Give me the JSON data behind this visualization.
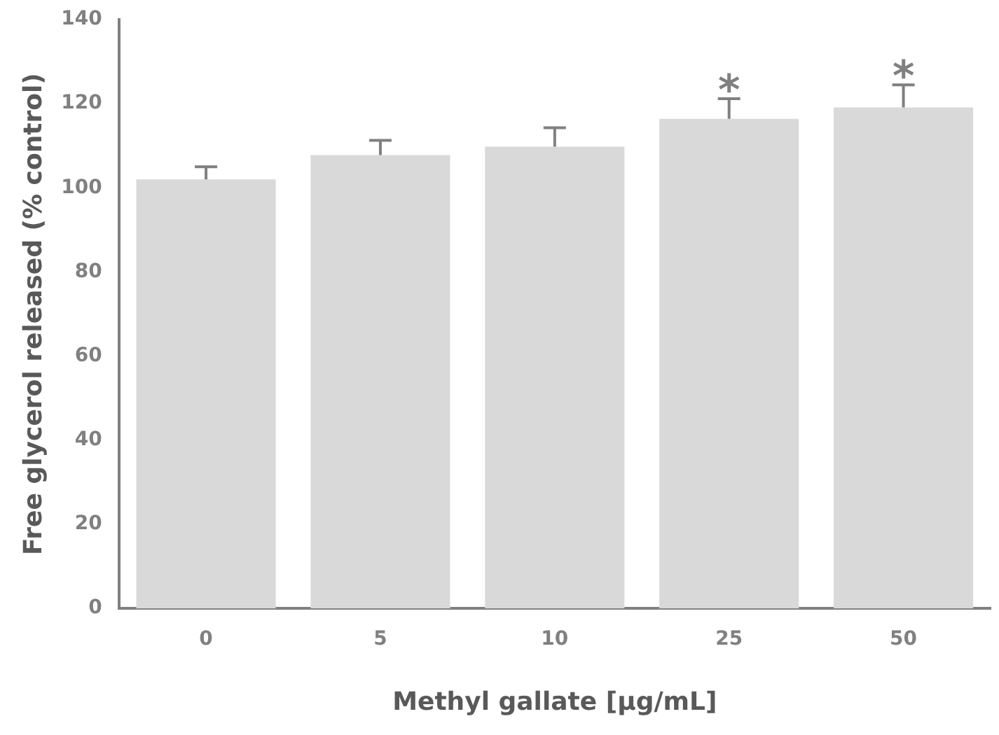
{
  "chart_data": {
    "type": "bar",
    "xlabel": "Methyl gallate [µg/mL]",
    "ylabel": "Free glycerol released (% control)",
    "categories": [
      "0",
      "5",
      "10",
      "25",
      "50"
    ],
    "values": [
      102,
      107.8,
      109.8,
      116.4,
      119.1
    ],
    "color": "#d9d9d9",
    "errors": [
      [
        102,
        105
      ],
      [
        107.8,
        111.3
      ],
      [
        109.8,
        114.3
      ],
      [
        116.4,
        121.2
      ],
      [
        119.1,
        124.5
      ]
    ],
    "ylim": [
      0,
      140
    ],
    "yticks": [
      0,
      20,
      40,
      60,
      80,
      100,
      120,
      140
    ],
    "grid": false,
    "legend": false,
    "annotations": [
      {
        "text": "*",
        "x": "25",
        "y": 121.2
      },
      {
        "text": "*",
        "x": "50",
        "y": 124.5
      }
    ]
  }
}
